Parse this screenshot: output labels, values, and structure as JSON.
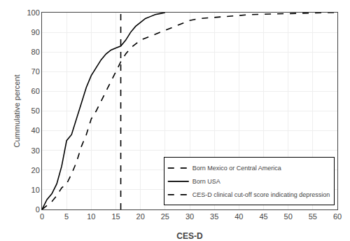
{
  "chart_data": {
    "type": "line",
    "xlabel": "CES-D",
    "ylabel": "Cummulative percent",
    "xlim": [
      0,
      60
    ],
    "ylim": [
      0,
      100
    ],
    "xticks": [
      0,
      5,
      10,
      15,
      20,
      25,
      30,
      35,
      40,
      45,
      50,
      55,
      60
    ],
    "yticks": [
      0,
      10,
      20,
      30,
      40,
      50,
      60,
      70,
      80,
      90,
      100
    ],
    "grid": true,
    "legend": "lower right",
    "series": [
      {
        "name": "Born Mexico or Central America",
        "color": "#000000",
        "line_style": "dashed",
        "x": [
          0,
          1,
          2,
          3,
          4,
          5,
          6,
          7,
          8,
          9,
          10,
          11,
          12,
          13,
          14,
          15,
          16,
          17,
          18,
          19,
          20,
          21,
          22,
          23,
          24,
          25,
          26,
          27,
          28,
          29,
          30,
          32,
          35,
          38,
          40,
          42,
          45,
          48,
          50,
          52,
          55,
          58,
          60
        ],
        "values": [
          0,
          2,
          4,
          7,
          11,
          13,
          18,
          24,
          32,
          38,
          46,
          50,
          55,
          60,
          65,
          70,
          75,
          79,
          82,
          84,
          86,
          87,
          88,
          89,
          90,
          91,
          92,
          93,
          94,
          95,
          96,
          97,
          97.5,
          98,
          98.5,
          99,
          99.2,
          99.5,
          99.7,
          99.8,
          99.9,
          100,
          100
        ]
      },
      {
        "name": "Born USA",
        "color": "#000000",
        "line_style": "solid",
        "x": [
          0,
          1,
          2,
          3,
          4,
          5,
          6,
          7,
          8,
          9,
          10,
          11,
          12,
          13,
          14,
          15,
          16,
          17,
          18,
          19,
          20,
          21,
          22,
          23,
          24,
          25
        ],
        "values": [
          0,
          5,
          8,
          13,
          22,
          35,
          38,
          46,
          54,
          62,
          68,
          72,
          76,
          79,
          81,
          82,
          83,
          86,
          90,
          93,
          95,
          97,
          98,
          99,
          99.5,
          100
        ]
      },
      {
        "name": "CES-D clinical cut-off score indicating depression",
        "type": "vline",
        "color": "#000000",
        "line_style": "dashed",
        "x": 16
      }
    ]
  }
}
